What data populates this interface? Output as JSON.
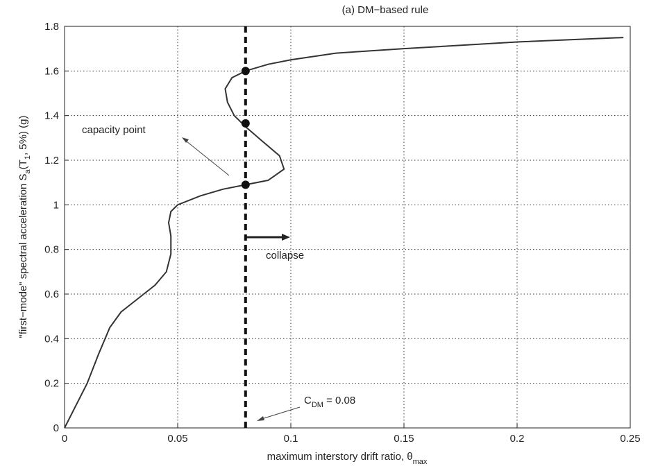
{
  "chart_data": {
    "type": "line",
    "title": "(a) DM−based rule",
    "x_label": [
      "maximum interstory drift ratio, θ",
      "max"
    ],
    "y_label": [
      "\"first−mode\" spectral acceleration S",
      "a",
      "(T",
      "1",
      ", 5%)  (g)"
    ],
    "xlim": [
      0,
      0.25
    ],
    "ylim": [
      0,
      1.8
    ],
    "xticks": [
      0,
      0.05,
      0.1,
      0.15,
      0.2,
      0.25
    ],
    "yticks": [
      0,
      0.2,
      0.4,
      0.6,
      0.8,
      1,
      1.2,
      1.4,
      1.6,
      1.8
    ],
    "grid": true,
    "series": [
      {
        "color": "#333333",
        "x": [
          0,
          0.005,
          0.01,
          0.015,
          0.02,
          0.025,
          0.03,
          0.035,
          0.04,
          0.045,
          0.047,
          0.047,
          0.046,
          0.047,
          0.05,
          0.06,
          0.07,
          0.08,
          0.09,
          0.097,
          0.095,
          0.088,
          0.08,
          0.075,
          0.072,
          0.071,
          0.074,
          0.08,
          0.09,
          0.1,
          0.12,
          0.15,
          0.2,
          0.247
        ],
        "values": [
          0,
          0.1,
          0.2,
          0.33,
          0.45,
          0.52,
          0.56,
          0.6,
          0.64,
          0.7,
          0.78,
          0.86,
          0.92,
          0.97,
          1.0,
          1.04,
          1.07,
          1.09,
          1.11,
          1.16,
          1.22,
          1.28,
          1.35,
          1.4,
          1.46,
          1.52,
          1.57,
          1.6,
          1.63,
          1.65,
          1.68,
          1.7,
          1.73,
          1.75
        ]
      }
    ],
    "points": {
      "color": "#111111",
      "x": [
        0.08,
        0.08,
        0.08
      ],
      "values": [
        1.09,
        1.365,
        1.6
      ]
    },
    "threshold": {
      "x": 0.08,
      "label": [
        "C",
        "DM",
        " = 0.08"
      ]
    },
    "annotations": [
      "capacity point",
      "collapse"
    ]
  }
}
